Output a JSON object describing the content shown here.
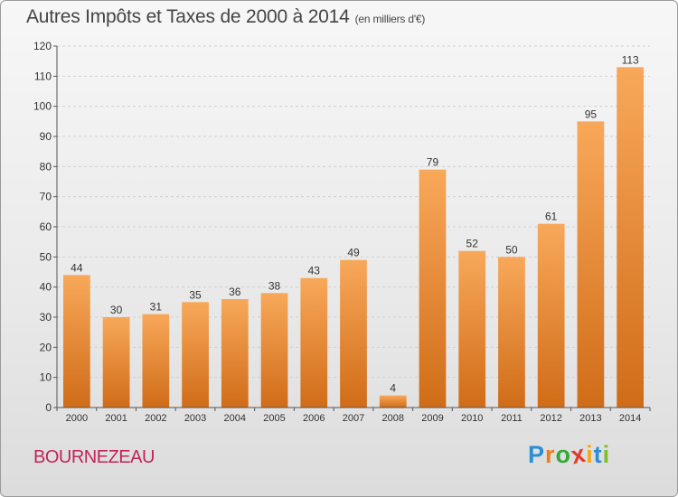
{
  "title": "Autres Impôts et Taxes de 2000 à 2014",
  "title_unit": "(en milliers d'€)",
  "town": "BOURNEZEAU",
  "logo": {
    "letters": [
      "P",
      "r",
      "o",
      "x",
      "i",
      "t",
      "i"
    ],
    "colors": [
      "#2b8fd6",
      "#f07c1a",
      "#35a937",
      "#e23a2a",
      "#f0a91a",
      "#2b8fd6",
      "#7bbf2a"
    ]
  },
  "chart_data": {
    "type": "bar",
    "categories": [
      "2000",
      "2001",
      "2002",
      "2003",
      "2004",
      "2005",
      "2006",
      "2007",
      "2008",
      "2009",
      "2010",
      "2011",
      "2012",
      "2013",
      "2014"
    ],
    "values": [
      44,
      30,
      31,
      35,
      36,
      38,
      43,
      49,
      4,
      79,
      52,
      50,
      61,
      95,
      113
    ],
    "title": "Autres Impôts et Taxes de 2000 à 2014",
    "xlabel": "",
    "ylabel": "",
    "ylim": [
      0,
      120
    ],
    "yticks": [
      0,
      10,
      20,
      30,
      40,
      50,
      60,
      70,
      80,
      90,
      100,
      110,
      120
    ],
    "grid": true,
    "colors": {
      "bar_light": "#f8a85a",
      "bar_dark": "#d06c18",
      "grid": "#cfcfcf"
    }
  }
}
